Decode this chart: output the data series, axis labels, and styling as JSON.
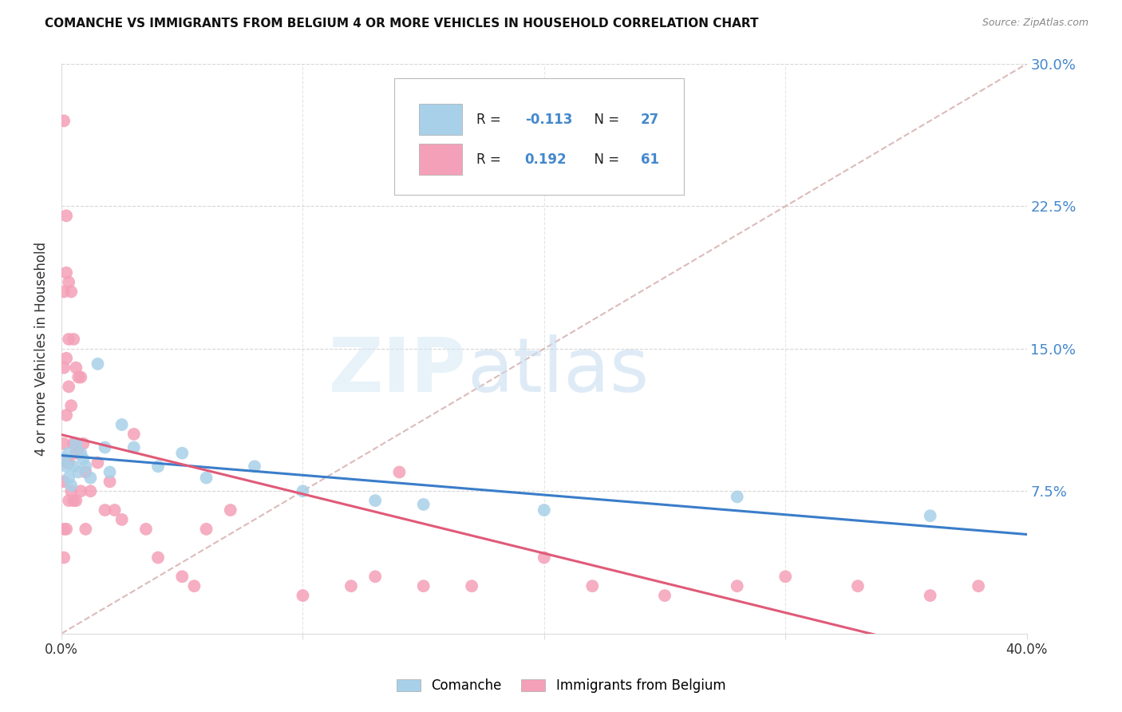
{
  "title": "COMANCHE VS IMMIGRANTS FROM BELGIUM 4 OR MORE VEHICLES IN HOUSEHOLD CORRELATION CHART",
  "source": "Source: ZipAtlas.com",
  "ylabel": "4 or more Vehicles in Household",
  "legend_1_label": "Comanche",
  "legend_2_label": "Immigrants from Belgium",
  "r1": -0.113,
  "n1": 27,
  "r2": 0.192,
  "n2": 61,
  "color1": "#A8D0E8",
  "color2": "#F4A0B8",
  "line_color1": "#3A7DC9",
  "line_color2": "#E05A78",
  "ref_line_color": "#D4AAAA",
  "xlim": [
    0.0,
    0.4
  ],
  "ylim": [
    0.0,
    0.3
  ],
  "yticks": [
    0.0,
    0.075,
    0.15,
    0.225,
    0.3
  ],
  "ytick_labels": [
    "",
    "7.5%",
    "15.0%",
    "22.5%",
    "30.0%"
  ],
  "xticks": [
    0.0,
    0.1,
    0.2,
    0.3,
    0.4
  ],
  "comanche_x": [
    0.001,
    0.002,
    0.003,
    0.003,
    0.004,
    0.005,
    0.006,
    0.007,
    0.008,
    0.009,
    0.01,
    0.012,
    0.015,
    0.018,
    0.02,
    0.025,
    0.03,
    0.04,
    0.05,
    0.06,
    0.08,
    0.1,
    0.13,
    0.15,
    0.2,
    0.28,
    0.36
  ],
  "comanche_y": [
    0.092,
    0.088,
    0.095,
    0.082,
    0.078,
    0.088,
    0.1,
    0.085,
    0.095,
    0.092,
    0.088,
    0.082,
    0.142,
    0.098,
    0.085,
    0.11,
    0.098,
    0.088,
    0.095,
    0.082,
    0.088,
    0.075,
    0.07,
    0.068,
    0.065,
    0.072,
    0.062
  ],
  "belgium_x": [
    0.001,
    0.001,
    0.001,
    0.001,
    0.001,
    0.001,
    0.001,
    0.002,
    0.002,
    0.002,
    0.002,
    0.002,
    0.002,
    0.003,
    0.003,
    0.003,
    0.003,
    0.003,
    0.004,
    0.004,
    0.004,
    0.005,
    0.005,
    0.005,
    0.006,
    0.006,
    0.006,
    0.007,
    0.007,
    0.008,
    0.008,
    0.009,
    0.01,
    0.01,
    0.012,
    0.015,
    0.018,
    0.02,
    0.022,
    0.025,
    0.03,
    0.035,
    0.04,
    0.05,
    0.055,
    0.06,
    0.07,
    0.1,
    0.12,
    0.13,
    0.14,
    0.15,
    0.17,
    0.2,
    0.22,
    0.25,
    0.28,
    0.3,
    0.33,
    0.36,
    0.38
  ],
  "belgium_y": [
    0.27,
    0.18,
    0.14,
    0.1,
    0.08,
    0.055,
    0.04,
    0.22,
    0.19,
    0.145,
    0.115,
    0.09,
    0.055,
    0.185,
    0.155,
    0.13,
    0.09,
    0.07,
    0.18,
    0.12,
    0.075,
    0.155,
    0.1,
    0.07,
    0.14,
    0.095,
    0.07,
    0.135,
    0.095,
    0.135,
    0.075,
    0.1,
    0.085,
    0.055,
    0.075,
    0.09,
    0.065,
    0.08,
    0.065,
    0.06,
    0.105,
    0.055,
    0.04,
    0.03,
    0.025,
    0.055,
    0.065,
    0.02,
    0.025,
    0.03,
    0.085,
    0.025,
    0.025,
    0.04,
    0.025,
    0.02,
    0.025,
    0.03,
    0.025,
    0.02,
    0.025
  ]
}
